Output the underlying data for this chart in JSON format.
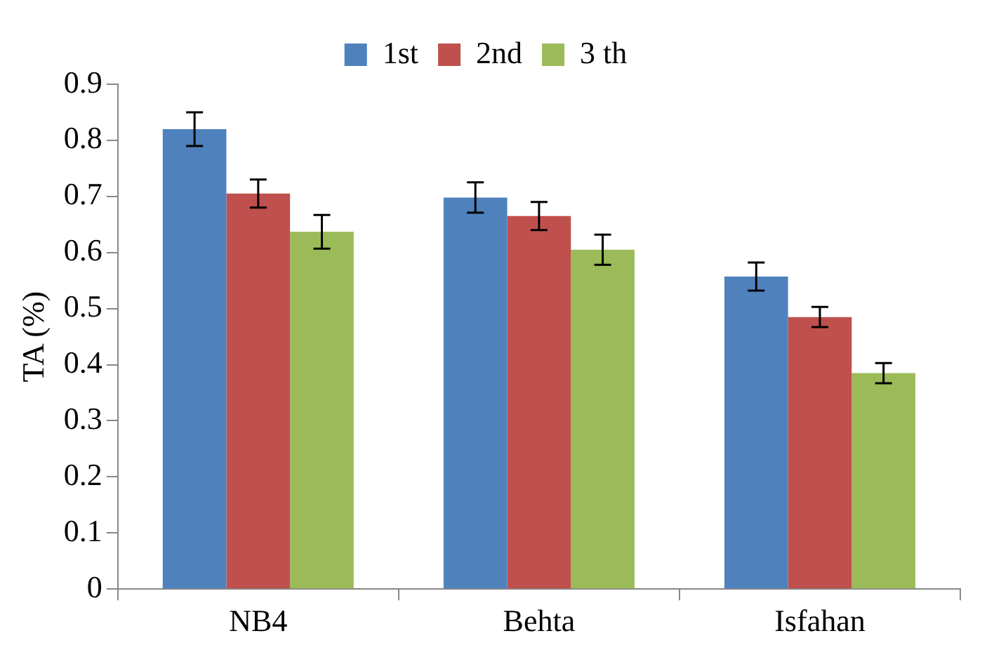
{
  "chart_data": {
    "type": "bar",
    "ylabel": "TA (%)",
    "categories": [
      "NB4",
      "Behta",
      "Isfahan"
    ],
    "series": [
      {
        "name": "1st",
        "color": "#4f81bd",
        "values": [
          0.82,
          0.698,
          0.557
        ],
        "errors": [
          0.03,
          0.027,
          0.025
        ]
      },
      {
        "name": "2nd",
        "color": "#c0504d",
        "values": [
          0.705,
          0.665,
          0.485
        ],
        "errors": [
          0.025,
          0.025,
          0.018
        ]
      },
      {
        "name": "3 th",
        "color": "#9bbb59",
        "values": [
          0.637,
          0.605,
          0.385
        ],
        "errors": [
          0.03,
          0.027,
          0.018
        ]
      }
    ],
    "ylim": [
      0,
      0.9
    ],
    "yticks": [
      0,
      0.1,
      0.2,
      0.3,
      0.4,
      0.5,
      0.6,
      0.7,
      0.8,
      0.9
    ],
    "grid": false,
    "legend": "top"
  }
}
